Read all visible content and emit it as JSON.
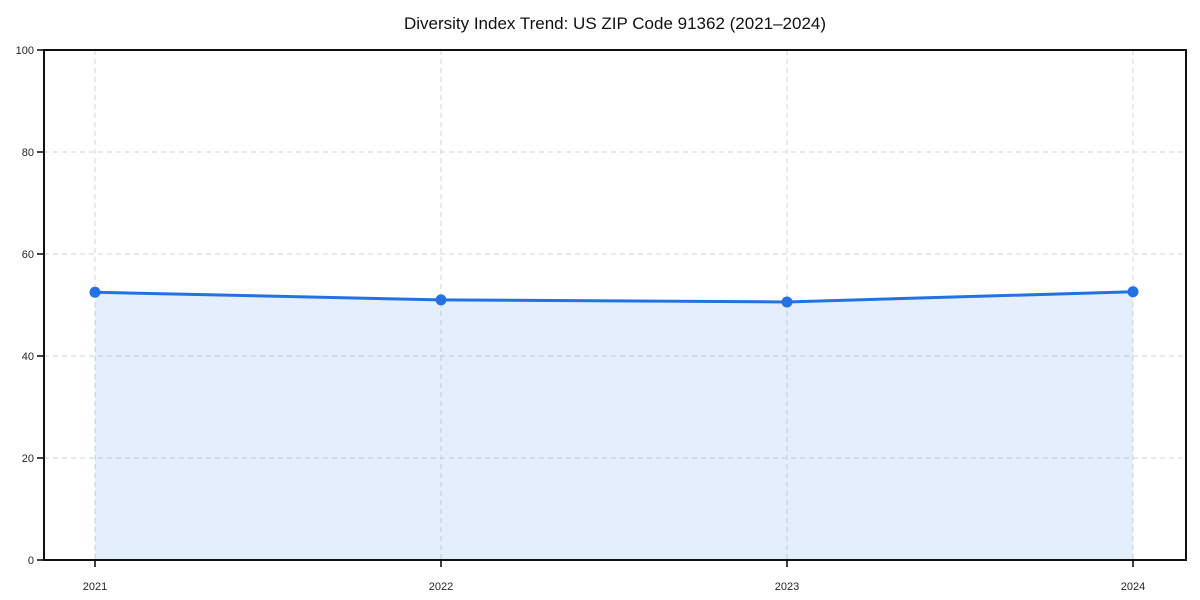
{
  "chart_data": {
    "type": "area",
    "title": "Diversity Index Trend: US ZIP Code 91362 (2021–2024)",
    "categories": [
      "2021",
      "2022",
      "2023",
      "2024"
    ],
    "series": [
      {
        "name": "Diversity Index",
        "values": [
          52.5,
          51.0,
          50.6,
          52.6
        ]
      }
    ],
    "xlabel": "",
    "ylabel": "",
    "ylim": [
      0,
      100
    ],
    "yticks": [
      0,
      20,
      40,
      60,
      80,
      100
    ],
    "grid": "dashed",
    "legend_position": "none",
    "colors": {
      "line": "#2272e3",
      "marker": "#2272e3",
      "fill": "#2272e3",
      "fill_opacity": "0.12",
      "grid": "#dcdcdc",
      "spine": "#111111",
      "title_text": "#111111",
      "tick_text": "#262626",
      "background": "#ffffff"
    }
  }
}
